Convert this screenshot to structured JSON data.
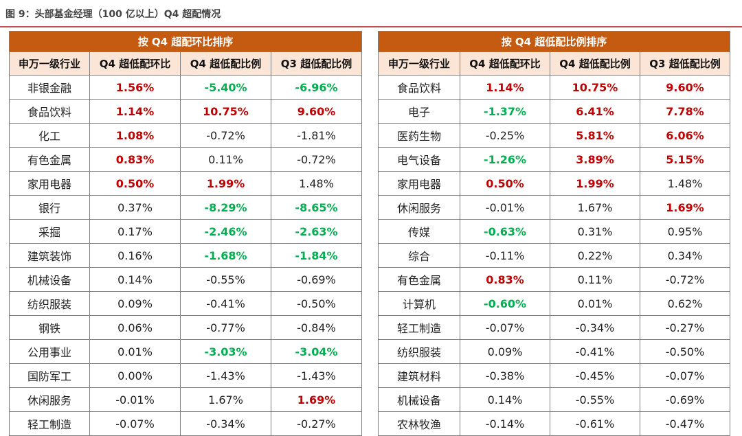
{
  "figure_title": "图 9：头部基金经理（100 亿以上）Q4 超配情况",
  "colors": {
    "red": "#c00000",
    "green": "#00b050",
    "band": "#c55a11",
    "header_bg": "#fbe5d6"
  },
  "tables": [
    {
      "title": "按 Q4 超配环比排序",
      "headers": [
        "申万一级行业",
        "Q4 超低配环比",
        "Q4 超低配比例",
        "Q3 超低配比例"
      ],
      "rows": [
        [
          {
            "v": "非银金融",
            "c": "ind"
          },
          {
            "v": "1.56%",
            "c": "red"
          },
          {
            "v": "-5.40%",
            "c": "green"
          },
          {
            "v": "-6.96%",
            "c": "green"
          }
        ],
        [
          {
            "v": "食品饮料",
            "c": "ind"
          },
          {
            "v": "1.14%",
            "c": "red"
          },
          {
            "v": "10.75%",
            "c": "red"
          },
          {
            "v": "9.60%",
            "c": "red"
          }
        ],
        [
          {
            "v": "化工",
            "c": "ind"
          },
          {
            "v": "1.08%",
            "c": "red"
          },
          {
            "v": "-0.72%",
            "c": "plain"
          },
          {
            "v": "-1.81%",
            "c": "plain"
          }
        ],
        [
          {
            "v": "有色金属",
            "c": "ind"
          },
          {
            "v": "0.83%",
            "c": "red"
          },
          {
            "v": "0.11%",
            "c": "plain"
          },
          {
            "v": "-0.72%",
            "c": "plain"
          }
        ],
        [
          {
            "v": "家用电器",
            "c": "ind"
          },
          {
            "v": "0.50%",
            "c": "red"
          },
          {
            "v": "1.99%",
            "c": "red"
          },
          {
            "v": "1.48%",
            "c": "plain"
          }
        ],
        [
          {
            "v": "银行",
            "c": "ind"
          },
          {
            "v": "0.37%",
            "c": "plain"
          },
          {
            "v": "-8.29%",
            "c": "green"
          },
          {
            "v": "-8.65%",
            "c": "green"
          }
        ],
        [
          {
            "v": "采掘",
            "c": "ind"
          },
          {
            "v": "0.17%",
            "c": "plain"
          },
          {
            "v": "-2.46%",
            "c": "green"
          },
          {
            "v": "-2.63%",
            "c": "green"
          }
        ],
        [
          {
            "v": "建筑装饰",
            "c": "ind"
          },
          {
            "v": "0.16%",
            "c": "plain"
          },
          {
            "v": "-1.68%",
            "c": "green"
          },
          {
            "v": "-1.84%",
            "c": "green"
          }
        ],
        [
          {
            "v": "机械设备",
            "c": "ind"
          },
          {
            "v": "0.14%",
            "c": "plain"
          },
          {
            "v": "-0.55%",
            "c": "plain"
          },
          {
            "v": "-0.69%",
            "c": "plain"
          }
        ],
        [
          {
            "v": "纺织服装",
            "c": "ind"
          },
          {
            "v": "0.09%",
            "c": "plain"
          },
          {
            "v": "-0.41%",
            "c": "plain"
          },
          {
            "v": "-0.50%",
            "c": "plain"
          }
        ],
        [
          {
            "v": "钢铁",
            "c": "ind"
          },
          {
            "v": "0.06%",
            "c": "plain"
          },
          {
            "v": "-0.77%",
            "c": "plain"
          },
          {
            "v": "-0.84%",
            "c": "plain"
          }
        ],
        [
          {
            "v": "公用事业",
            "c": "ind"
          },
          {
            "v": "0.01%",
            "c": "plain"
          },
          {
            "v": "-3.03%",
            "c": "green"
          },
          {
            "v": "-3.04%",
            "c": "green"
          }
        ],
        [
          {
            "v": "国防军工",
            "c": "ind"
          },
          {
            "v": "0.00%",
            "c": "plain"
          },
          {
            "v": "-1.43%",
            "c": "plain"
          },
          {
            "v": "-1.43%",
            "c": "plain"
          }
        ],
        [
          {
            "v": "休闲服务",
            "c": "ind"
          },
          {
            "v": "-0.01%",
            "c": "plain"
          },
          {
            "v": "1.67%",
            "c": "plain"
          },
          {
            "v": "1.69%",
            "c": "red"
          }
        ],
        [
          {
            "v": "轻工制造",
            "c": "ind"
          },
          {
            "v": "-0.07%",
            "c": "plain"
          },
          {
            "v": "-0.34%",
            "c": "plain"
          },
          {
            "v": "-0.27%",
            "c": "plain"
          }
        ]
      ]
    },
    {
      "title": "按 Q4 超低配比例排序",
      "headers": [
        "申万一级行业",
        "Q4 超低配环比",
        "Q4 超低配比例",
        "Q3 超低配比例"
      ],
      "rows": [
        [
          {
            "v": "食品饮料",
            "c": "ind"
          },
          {
            "v": "1.14%",
            "c": "red"
          },
          {
            "v": "10.75%",
            "c": "red"
          },
          {
            "v": "9.60%",
            "c": "red"
          }
        ],
        [
          {
            "v": "电子",
            "c": "ind"
          },
          {
            "v": "-1.37%",
            "c": "green"
          },
          {
            "v": "6.41%",
            "c": "red"
          },
          {
            "v": "7.78%",
            "c": "red"
          }
        ],
        [
          {
            "v": "医药生物",
            "c": "ind"
          },
          {
            "v": "-0.25%",
            "c": "plain"
          },
          {
            "v": "5.81%",
            "c": "red"
          },
          {
            "v": "6.06%",
            "c": "red"
          }
        ],
        [
          {
            "v": "电气设备",
            "c": "ind"
          },
          {
            "v": "-1.26%",
            "c": "green"
          },
          {
            "v": "3.89%",
            "c": "red"
          },
          {
            "v": "5.15%",
            "c": "red"
          }
        ],
        [
          {
            "v": "家用电器",
            "c": "ind"
          },
          {
            "v": "0.50%",
            "c": "red"
          },
          {
            "v": "1.99%",
            "c": "red"
          },
          {
            "v": "1.48%",
            "c": "plain"
          }
        ],
        [
          {
            "v": "休闲服务",
            "c": "ind"
          },
          {
            "v": "-0.01%",
            "c": "plain"
          },
          {
            "v": "1.67%",
            "c": "plain"
          },
          {
            "v": "1.69%",
            "c": "red"
          }
        ],
        [
          {
            "v": "传媒",
            "c": "ind"
          },
          {
            "v": "-0.63%",
            "c": "green"
          },
          {
            "v": "0.31%",
            "c": "plain"
          },
          {
            "v": "0.95%",
            "c": "plain"
          }
        ],
        [
          {
            "v": "综合",
            "c": "ind"
          },
          {
            "v": "-0.11%",
            "c": "plain"
          },
          {
            "v": "0.22%",
            "c": "plain"
          },
          {
            "v": "0.34%",
            "c": "plain"
          }
        ],
        [
          {
            "v": "有色金属",
            "c": "ind"
          },
          {
            "v": "0.83%",
            "c": "red"
          },
          {
            "v": "0.11%",
            "c": "plain"
          },
          {
            "v": "-0.72%",
            "c": "plain"
          }
        ],
        [
          {
            "v": "计算机",
            "c": "ind"
          },
          {
            "v": "-0.60%",
            "c": "green"
          },
          {
            "v": "0.01%",
            "c": "plain"
          },
          {
            "v": "0.62%",
            "c": "plain"
          }
        ],
        [
          {
            "v": "轻工制造",
            "c": "ind"
          },
          {
            "v": "-0.07%",
            "c": "plain"
          },
          {
            "v": "-0.34%",
            "c": "plain"
          },
          {
            "v": "-0.27%",
            "c": "plain"
          }
        ],
        [
          {
            "v": "纺织服装",
            "c": "ind"
          },
          {
            "v": "0.09%",
            "c": "plain"
          },
          {
            "v": "-0.41%",
            "c": "plain"
          },
          {
            "v": "-0.50%",
            "c": "plain"
          }
        ],
        [
          {
            "v": "建筑材料",
            "c": "ind"
          },
          {
            "v": "-0.38%",
            "c": "plain"
          },
          {
            "v": "-0.45%",
            "c": "plain"
          },
          {
            "v": "-0.07%",
            "c": "plain"
          }
        ],
        [
          {
            "v": "机械设备",
            "c": "ind"
          },
          {
            "v": "0.14%",
            "c": "plain"
          },
          {
            "v": "-0.55%",
            "c": "plain"
          },
          {
            "v": "-0.69%",
            "c": "plain"
          }
        ],
        [
          {
            "v": "农林牧渔",
            "c": "ind"
          },
          {
            "v": "-0.14%",
            "c": "plain"
          },
          {
            "v": "-0.61%",
            "c": "plain"
          },
          {
            "v": "-0.47%",
            "c": "plain"
          }
        ]
      ]
    }
  ]
}
